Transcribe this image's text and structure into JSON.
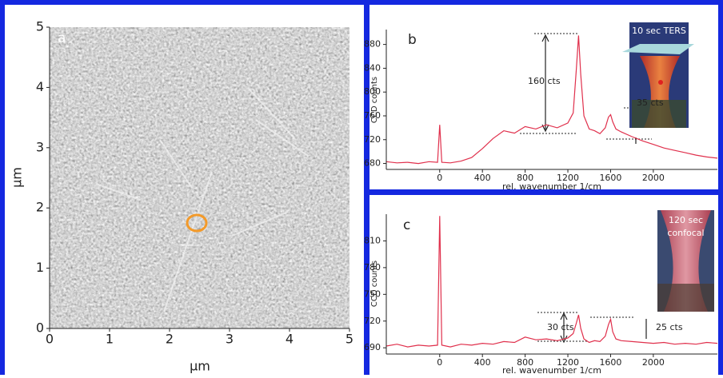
{
  "chart_data": [
    {
      "type": "image",
      "panel_label": "a",
      "xlabel": "µm",
      "ylabel": "µm",
      "xlim": [
        0,
        5
      ],
      "ylim": [
        0,
        5
      ],
      "xticks": [
        0,
        1,
        2,
        3,
        4,
        5
      ],
      "yticks": [
        0,
        1,
        2,
        3,
        4,
        5
      ]
    },
    {
      "type": "line",
      "panel_label": "b",
      "xlabel": "rel. wavenumber 1/cm",
      "ylabel": "CCD counts",
      "color": "#e0304c",
      "xlim": [
        -500,
        2600
      ],
      "ylim": [
        670,
        905
      ],
      "xticks": [
        0,
        400,
        800,
        1200,
        1600,
        2000
      ],
      "yticks": [
        680,
        720,
        760,
        800,
        840,
        880
      ],
      "x": [
        -500,
        -400,
        -300,
        -200,
        -100,
        -20,
        0,
        20,
        100,
        200,
        300,
        400,
        500,
        600,
        700,
        800,
        900,
        1000,
        1100,
        1200,
        1250,
        1280,
        1300,
        1320,
        1350,
        1400,
        1450,
        1500,
        1550,
        1580,
        1600,
        1620,
        1650,
        1700,
        1800,
        1900,
        2000,
        2100,
        2200,
        2300,
        2400,
        2500,
        2600
      ],
      "values": [
        683,
        681,
        682,
        680,
        683,
        682,
        745,
        682,
        681,
        684,
        690,
        705,
        722,
        735,
        731,
        742,
        738,
        745,
        740,
        748,
        765,
        840,
        895,
        830,
        760,
        738,
        735,
        730,
        740,
        758,
        762,
        750,
        738,
        733,
        725,
        718,
        712,
        706,
        702,
        698,
        694,
        691,
        689
      ],
      "annotations": [
        "160 cts",
        "35 cts"
      ],
      "inset_label": "10 sec TERS"
    },
    {
      "type": "line",
      "panel_label": "c",
      "xlabel": "rel. wavenumber 1/cm",
      "ylabel": "CCD counts",
      "color": "#e0304c",
      "xlim": [
        -500,
        2600
      ],
      "ylim": [
        683,
        840
      ],
      "xticks": [
        0,
        400,
        800,
        1200,
        1600,
        2000
      ],
      "yticks": [
        690,
        720,
        750,
        780,
        810
      ],
      "x": [
        -500,
        -400,
        -300,
        -200,
        -100,
        -20,
        0,
        20,
        100,
        200,
        300,
        400,
        500,
        600,
        700,
        800,
        900,
        1000,
        1100,
        1200,
        1250,
        1280,
        1300,
        1320,
        1350,
        1400,
        1450,
        1500,
        1550,
        1580,
        1600,
        1620,
        1650,
        1700,
        1800,
        1900,
        2000,
        2100,
        2200,
        2300,
        2400,
        2500,
        2600
      ],
      "values": [
        692,
        694,
        691,
        693,
        692,
        693,
        838,
        693,
        691,
        694,
        693,
        695,
        694,
        697,
        696,
        702,
        699,
        700,
        698,
        701,
        706,
        718,
        727,
        712,
        700,
        696,
        698,
        697,
        703,
        716,
        722,
        708,
        700,
        698,
        697,
        696,
        695,
        696,
        694,
        695,
        694,
        696,
        695
      ],
      "annotations": [
        "30 cts",
        "25 cts"
      ],
      "inset_label": "120 sec confocal"
    }
  ]
}
